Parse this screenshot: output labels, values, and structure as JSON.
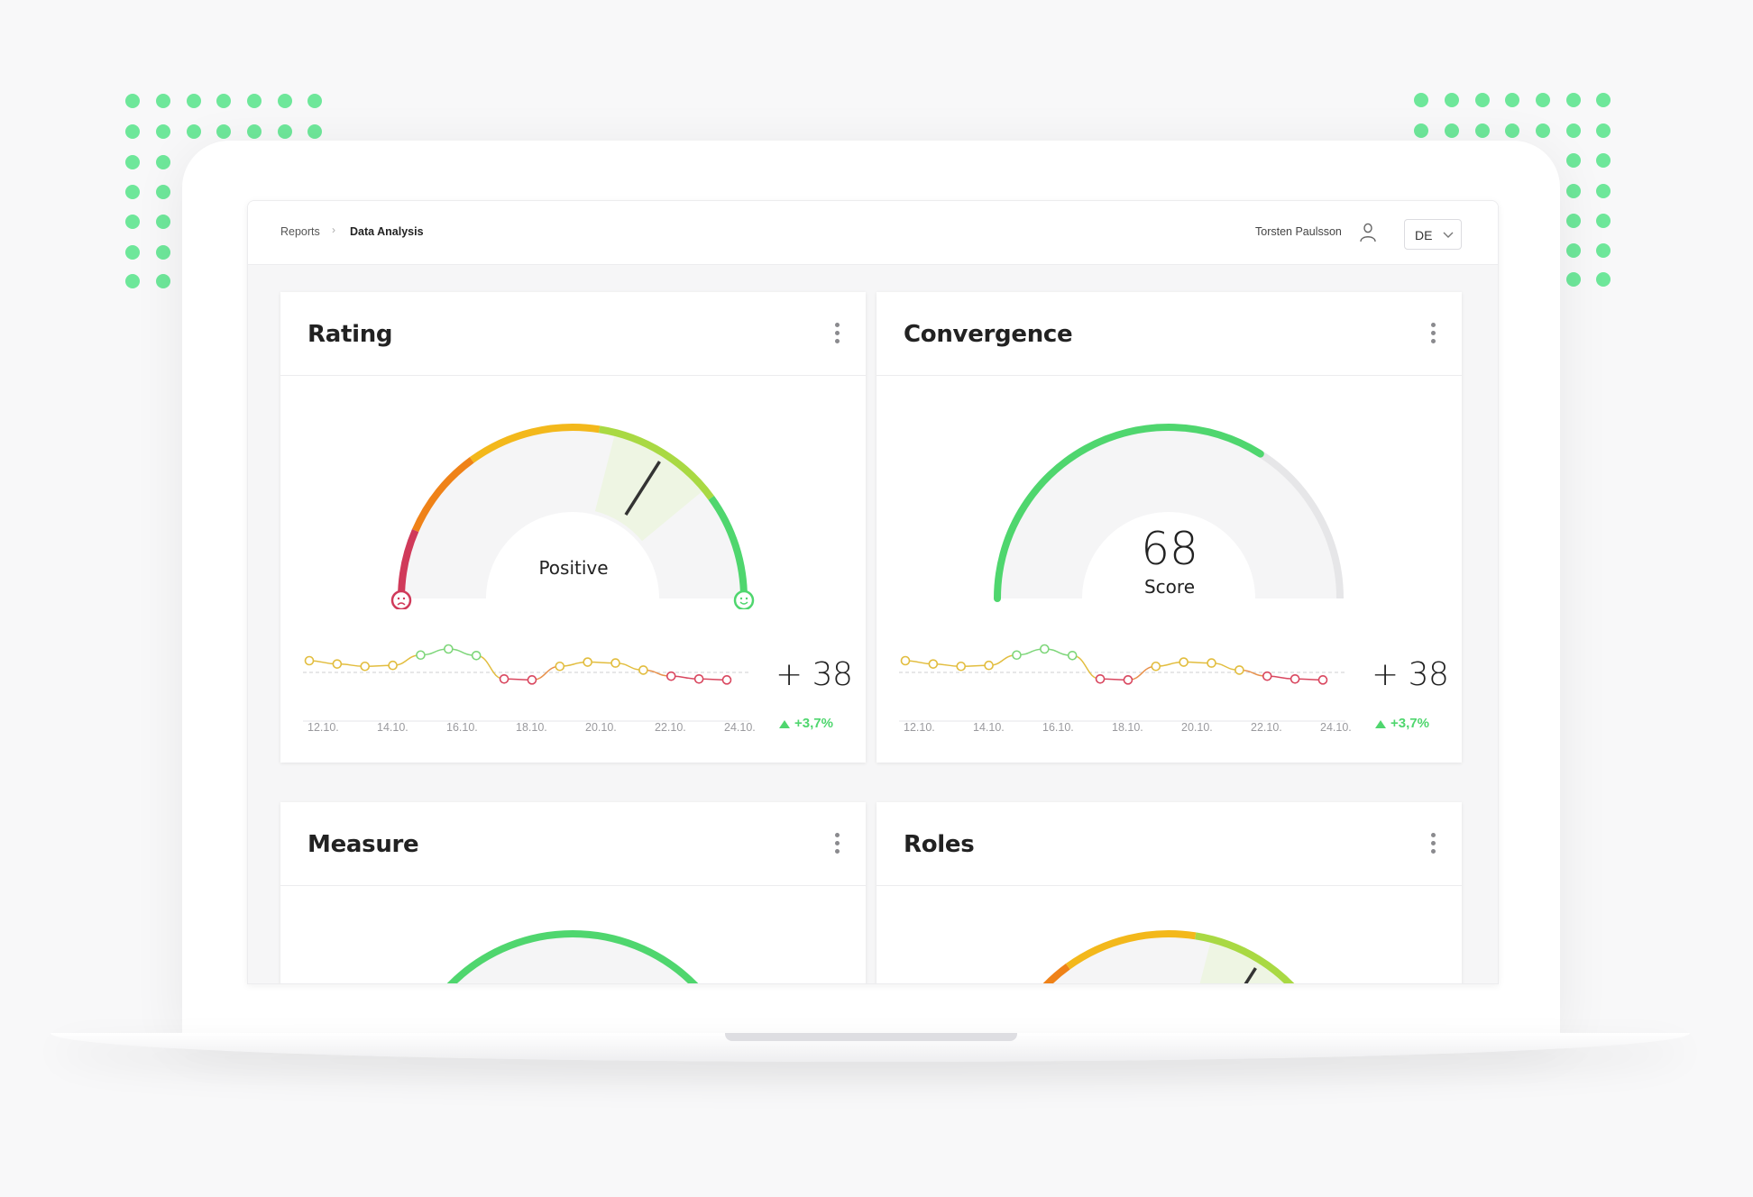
{
  "breadcrumb": {
    "parent": "Reports",
    "current": "Data Analysis"
  },
  "user": {
    "name": "Torsten Paulsson",
    "icon": "user-icon"
  },
  "language": {
    "selected": "DE"
  },
  "colors": {
    "dots": "#6ee79a",
    "green": "#4fd66e",
    "red": "#d03a5a",
    "orange": "#ef8218",
    "yellow": "#f3b81b"
  },
  "cards": [
    {
      "title": "Rating",
      "gauge": {
        "type": "sentiment",
        "label": "Positive",
        "needle_fraction": 0.68
      },
      "spark": {
        "dates": [
          "12.10.",
          "14.10.",
          "16.10.",
          "18.10.",
          "20.10.",
          "22.10.",
          "24.10."
        ]
      },
      "delta": {
        "value": "+ 38",
        "pct": "+3,7%"
      }
    },
    {
      "title": "Convergence",
      "gauge": {
        "type": "score",
        "value": "68",
        "label": "Score",
        "fraction": 0.68
      },
      "spark": {
        "dates": [
          "12.10.",
          "14.10.",
          "16.10.",
          "18.10.",
          "20.10.",
          "22.10.",
          "24.10."
        ]
      },
      "delta": {
        "value": "+ 38",
        "pct": "+3,7%"
      }
    },
    {
      "title": "Measure"
    },
    {
      "title": "Roles"
    }
  ],
  "spark_series": [
    0.25,
    0.18,
    0.13,
    0.15,
    0.37,
    0.5,
    0.36,
    -0.14,
    -0.16,
    0.13,
    0.22,
    0.2,
    0.05,
    -0.08,
    -0.14,
    -0.16
  ]
}
